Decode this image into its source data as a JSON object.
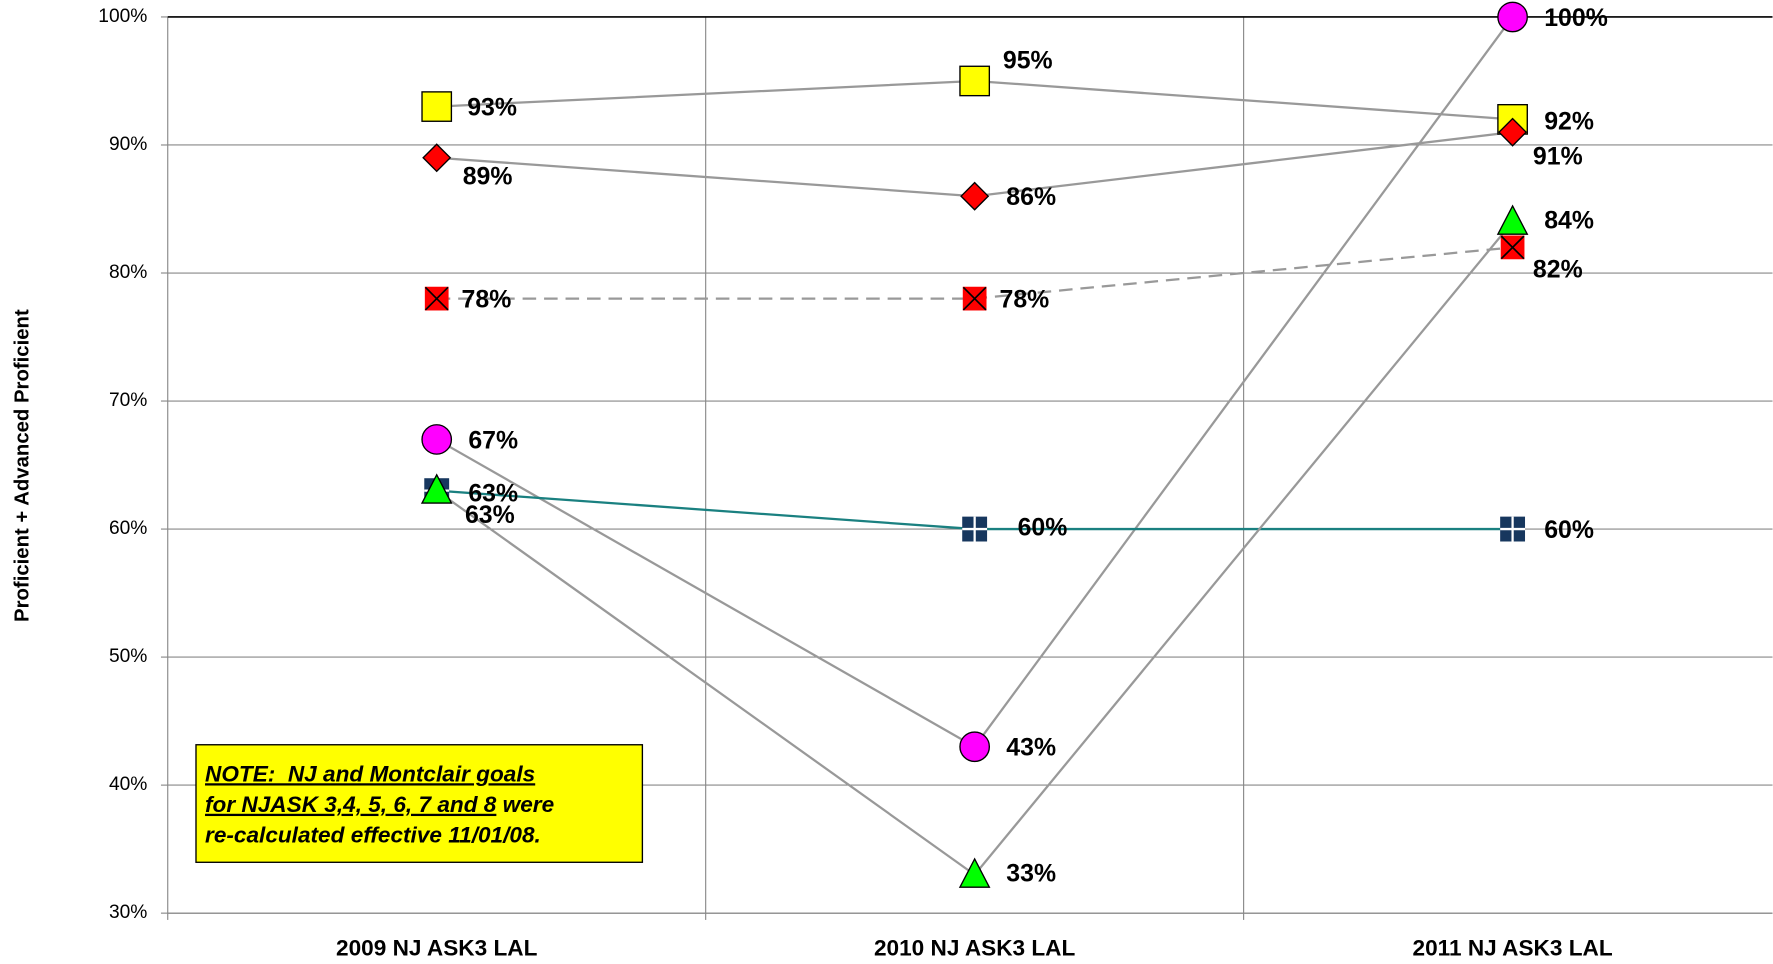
{
  "chart_data": {
    "type": "line",
    "y_label": "Proficient + Advanced Proficient",
    "categories": [
      "2009 NJ ASK3  LAL",
      "2010 NJ ASK3  LAL",
      "2011 NJ ASK3  LAL"
    ],
    "ylim": [
      30,
      100
    ],
    "yticks": [
      {
        "value": 30,
        "label": "30%"
      },
      {
        "value": 40,
        "label": "40%"
      },
      {
        "value": 50,
        "label": "50%"
      },
      {
        "value": 60,
        "label": "60%"
      },
      {
        "value": 70,
        "label": "70%"
      },
      {
        "value": 80,
        "label": "80%"
      },
      {
        "value": 90,
        "label": "90%"
      },
      {
        "value": 100,
        "label": "100%"
      }
    ],
    "grid": true,
    "series": [
      {
        "marker": "square",
        "color": "#ffff00",
        "line_color": "#999999",
        "values": [
          93,
          95,
          92
        ],
        "value_labels": [
          "93%",
          "95%",
          "92%"
        ]
      },
      {
        "marker": "diamond",
        "color": "#ff0000",
        "line_color": "#999999",
        "values": [
          89,
          86,
          91
        ],
        "value_labels": [
          "89%",
          "86%",
          "91%"
        ]
      },
      {
        "marker": "xsquare",
        "color": "#ff0000",
        "line_color": "#999999",
        "dashed": true,
        "values": [
          78,
          78,
          82
        ],
        "value_labels": [
          "78%",
          "78%",
          "82%"
        ]
      },
      {
        "marker": "circle",
        "color": "#ff00ff",
        "line_color": "#999999",
        "values": [
          67,
          43,
          100
        ],
        "value_labels": [
          "67%",
          "43%",
          "100%"
        ]
      },
      {
        "marker": "crosssquare",
        "color": "#17375e",
        "line_color": "#1a8080",
        "values": [
          63,
          60,
          60
        ],
        "value_labels": [
          "63%",
          "60%",
          "60%"
        ]
      },
      {
        "marker": "triangle",
        "color": "#00ff00",
        "line_color": "#999999",
        "values": [
          63,
          33,
          84
        ],
        "value_labels": [
          "63%",
          "33%",
          "84%"
        ]
      }
    ],
    "annotation": {
      "lines": [
        [
          {
            "text": "NOTE:  NJ and Montclair goals",
            "underline": true
          }
        ],
        [
          {
            "text": "for NJASK 3,4, 5, 6, 7 and 8",
            "underline": true
          },
          {
            "text": " were",
            "underline": false
          }
        ],
        [
          {
            "text": "re-calculated effective 11/01/08.",
            "underline": false
          }
        ]
      ]
    }
  }
}
